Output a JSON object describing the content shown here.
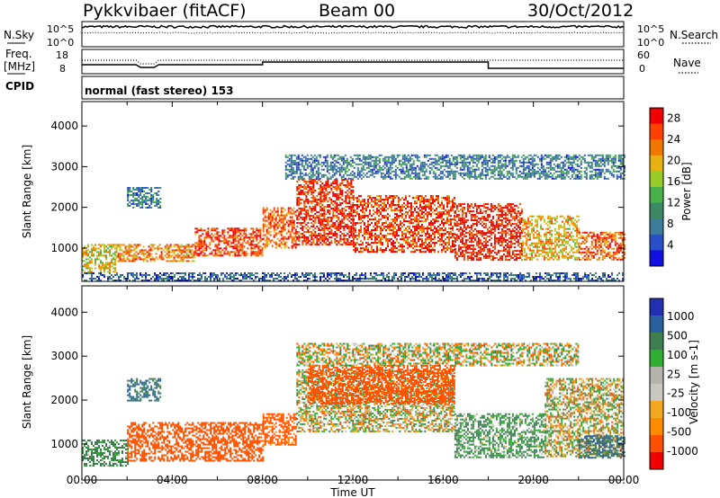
{
  "header": {
    "station": "Pykkvibaer (fitACF)",
    "beam": "Beam 00",
    "date": "30/Oct/2012"
  },
  "noise_panel": {
    "left_label": "N.Sky",
    "left_top": "10^5",
    "left_bottom": "10^0",
    "right_top": "10^5",
    "right_bottom": "10^0",
    "right_label": "N.Search"
  },
  "freq_panel": {
    "label_line1": "Freq.",
    "label_line2": "[MHz]",
    "left_top": "18",
    "left_bottom": "8",
    "right_top": "60",
    "right_bottom": "0",
    "right_label": "Nave"
  },
  "cpid_panel": {
    "label": "CPID",
    "value": "normal (fast stereo) 153"
  },
  "colors": {
    "power_scale": [
      "#1010e0",
      "#2850c8",
      "#3c7c9c",
      "#3c8a64",
      "#48b048",
      "#98cc28",
      "#e8b010",
      "#f07800",
      "#ff4000",
      "#f00000"
    ],
    "velocity_scale": [
      "#f00000",
      "#ff5000",
      "#ff8c00",
      "#f4a820",
      "#c8c8c0",
      "#b4b4ac",
      "#30b030",
      "#3c8050",
      "#2860a0",
      "#2030b0"
    ]
  },
  "chart_data": [
    {
      "type": "heatmap",
      "title": "",
      "xlabel": "Time UT",
      "ylabel": "Slant Range [km]",
      "x_ticks": [
        "00:00",
        "04:00",
        "08:00",
        "12:00",
        "16:00",
        "20:00",
        "00:00"
      ],
      "y_ticks": [
        "1000",
        "2000",
        "3000",
        "4000"
      ],
      "xlim": [
        0,
        24
      ],
      "ylim": [
        180,
        4600
      ],
      "colorbar": {
        "label": "Power [dB]",
        "ticks": [
          "4",
          "8",
          "12",
          "16",
          "20",
          "24",
          "28"
        ],
        "range": [
          0,
          30
        ]
      },
      "echo_regions": [
        {
          "t": [
            0.0,
            1.5
          ],
          "range": [
            400,
            1100
          ],
          "power": 18
        },
        {
          "t": [
            1.5,
            5.0
          ],
          "range": [
            700,
            1100
          ],
          "power": 22
        },
        {
          "t": [
            5.0,
            8.0
          ],
          "range": [
            800,
            1500
          ],
          "power": 26
        },
        {
          "t": [
            8.0,
            9.5
          ],
          "range": [
            1000,
            2000
          ],
          "power": 24
        },
        {
          "t": [
            9.5,
            12.0
          ],
          "range": [
            1100,
            2700
          ],
          "power": 27
        },
        {
          "t": [
            12.0,
            16.5
          ],
          "range": [
            900,
            2300
          ],
          "power": 26
        },
        {
          "t": [
            16.5,
            19.5
          ],
          "range": [
            700,
            2100
          ],
          "power": 28
        },
        {
          "t": [
            19.5,
            22.0
          ],
          "range": [
            700,
            1800
          ],
          "power": 20
        },
        {
          "t": [
            22.0,
            24.0
          ],
          "range": [
            700,
            1400
          ],
          "power": 24
        },
        {
          "t": [
            9.0,
            24.0
          ],
          "range": [
            2700,
            3300
          ],
          "power": 8
        },
        {
          "t": [
            2.0,
            3.5
          ],
          "range": [
            2000,
            2500
          ],
          "power": 8
        },
        {
          "t": [
            0.0,
            24.0
          ],
          "range": [
            200,
            400
          ],
          "power": 6
        }
      ]
    },
    {
      "type": "heatmap",
      "title": "",
      "xlabel": "Time UT",
      "ylabel": "Slant Range [km]",
      "x_ticks": [
        "00:00",
        "04:00",
        "08:00",
        "12:00",
        "16:00",
        "20:00",
        "00:00"
      ],
      "y_ticks": [
        "1000",
        "2000",
        "3000",
        "4000"
      ],
      "xlim": [
        0,
        24
      ],
      "ylim": [
        180,
        4600
      ],
      "colorbar": {
        "label": "Velocity [m s-1]",
        "ticks": [
          "1000",
          "500",
          "100",
          "25",
          "-25",
          "-100",
          "-500",
          "-1000"
        ],
        "range": [
          -1000,
          1000
        ]
      },
      "echo_regions": [
        {
          "t": [
            0.0,
            2.0
          ],
          "range": [
            500,
            1100
          ],
          "velocity": 150
        },
        {
          "t": [
            2.0,
            8.0
          ],
          "range": [
            600,
            1500
          ],
          "velocity": -250
        },
        {
          "t": [
            8.0,
            9.5
          ],
          "range": [
            1000,
            1700
          ],
          "velocity": -200
        },
        {
          "t": [
            9.5,
            16.5
          ],
          "range": [
            1300,
            2700
          ],
          "velocity": 0
        },
        {
          "t": [
            10.0,
            16.5
          ],
          "range": [
            1900,
            2800
          ],
          "velocity": -250
        },
        {
          "t": [
            16.5,
            20.5
          ],
          "range": [
            700,
            1700
          ],
          "velocity": 120
        },
        {
          "t": [
            20.5,
            24.0
          ],
          "range": [
            700,
            2500
          ],
          "velocity": 0
        },
        {
          "t": [
            22.0,
            24.0
          ],
          "range": [
            700,
            1200
          ],
          "velocity": 300
        },
        {
          "t": [
            9.5,
            22.0
          ],
          "range": [
            2800,
            3300
          ],
          "velocity": 0
        },
        {
          "t": [
            2.0,
            3.5
          ],
          "range": [
            2000,
            2500
          ],
          "velocity": 300
        }
      ]
    }
  ]
}
